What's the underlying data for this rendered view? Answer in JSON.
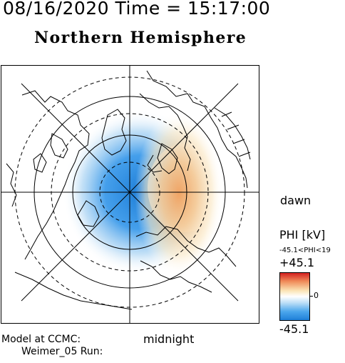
{
  "header": {
    "datetime": "08/16/2020 Time = 15:17:00",
    "hemisphere": "Northern Hemisphere"
  },
  "map": {
    "label_right": "dawn",
    "label_bottom": "midnight",
    "projection": "polar, centered on geomagnetic north pole",
    "features": [
      "dashed latitude circles",
      "solid latitude circles",
      "meridian grid lines",
      "coastlines"
    ],
    "colors": {
      "negative": "#1f7fd8",
      "positive": "#d42020",
      "zero": "#ffffff"
    }
  },
  "colorbar": {
    "title": "PHI [kV]",
    "range_text": "-45.1<PHI<19",
    "max_label": "+45.1",
    "zero_label": "0",
    "min_label": "-45.1"
  },
  "footer": {
    "model_label": "Model at CCMC:",
    "run_label": "Weimer_05 Run:"
  }
}
